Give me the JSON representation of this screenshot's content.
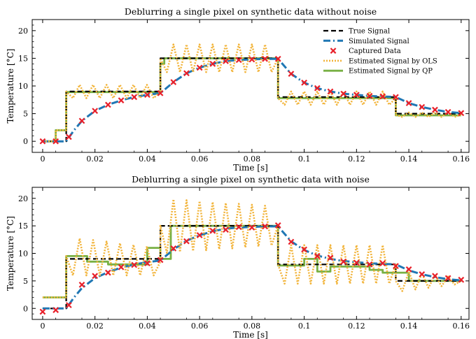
{
  "colors": {
    "true": "#000000",
    "sim": "#1f77b4",
    "cap": "#e8202a",
    "ols": "#f2b43a",
    "qp": "#78b043"
  },
  "chart_data": [
    {
      "type": "line",
      "title": "Deblurring a single pixel on synthetic data without noise",
      "xlabel": "Time [s]",
      "ylabel": "Temperature [°C]",
      "xlim": [
        -0.004,
        0.163
      ],
      "ylim": [
        -2,
        22
      ],
      "xticks": [
        0,
        0.02,
        0.04,
        0.06,
        0.08,
        0.1,
        0.12,
        0.14,
        0.16
      ],
      "xtick_labels": [
        "0",
        "0.02",
        "0.04",
        "0.06",
        "0.08",
        "0.1",
        "0.12",
        "0.14",
        "0.16"
      ],
      "yticks": [
        0,
        5,
        10,
        15,
        20
      ],
      "ytick_labels": [
        "0",
        "5",
        "10",
        "15",
        "20"
      ],
      "grid": false,
      "legend_position": "top-right",
      "legend": [
        {
          "key": "true",
          "label": "True Signal"
        },
        {
          "key": "sim",
          "label": "Simulated Signal"
        },
        {
          "key": "cap",
          "label": "Captured Data"
        },
        {
          "key": "ols",
          "label": "Estimated Signal by OLS"
        },
        {
          "key": "qp",
          "label": "Estimated Signal by QP"
        }
      ],
      "series": [
        {
          "key": "true",
          "name": "True Signal",
          "step": true,
          "x": [
            0,
            0.009,
            0.009,
            0.045,
            0.045,
            0.09,
            0.09,
            0.135,
            0.135,
            0.16
          ],
          "y": [
            0,
            0,
            9,
            9,
            15,
            15,
            8,
            8,
            5,
            5
          ]
        },
        {
          "key": "sim",
          "name": "Simulated Signal",
          "x": [
            0,
            0.009,
            0.012,
            0.015,
            0.02,
            0.025,
            0.03,
            0.035,
            0.04,
            0.045,
            0.05,
            0.055,
            0.06,
            0.065,
            0.07,
            0.075,
            0.08,
            0.085,
            0.09,
            0.095,
            0.1,
            0.105,
            0.11,
            0.115,
            0.12,
            0.125,
            0.13,
            0.135,
            0.14,
            0.145,
            0.15,
            0.155,
            0.16
          ],
          "y": [
            0,
            0,
            2.0,
            3.7,
            5.5,
            6.6,
            7.4,
            8.0,
            8.4,
            8.7,
            10.7,
            12.3,
            13.3,
            14.0,
            14.5,
            14.7,
            14.8,
            14.9,
            14.9,
            12.2,
            10.6,
            9.6,
            9.0,
            8.6,
            8.4,
            8.2,
            8.1,
            8.0,
            6.9,
            6.2,
            5.7,
            5.3,
            5.1
          ]
        },
        {
          "key": "cap",
          "name": "Captured Data",
          "x": [
            0,
            0.005,
            0.01,
            0.015,
            0.02,
            0.025,
            0.03,
            0.035,
            0.04,
            0.045,
            0.05,
            0.055,
            0.06,
            0.065,
            0.07,
            0.075,
            0.08,
            0.085,
            0.09,
            0.095,
            0.1,
            0.105,
            0.11,
            0.115,
            0.12,
            0.125,
            0.13,
            0.135,
            0.14,
            0.145,
            0.15,
            0.155,
            0.16
          ],
          "y": [
            0,
            0,
            0.8,
            3.7,
            5.5,
            6.6,
            7.4,
            8.0,
            8.4,
            8.7,
            10.7,
            12.3,
            13.3,
            14.0,
            14.5,
            14.7,
            14.8,
            14.9,
            14.9,
            12.2,
            10.6,
            9.6,
            9.0,
            8.6,
            8.4,
            8.2,
            8.1,
            8.0,
            6.9,
            6.2,
            5.7,
            5.3,
            5.1
          ]
        },
        {
          "key": "ols",
          "name": "Estimated Signal by OLS",
          "oscillating": true,
          "x": [
            0,
            0.005,
            0.005,
            0.009,
            0.009,
            0.045,
            0.045,
            0.09,
            0.09,
            0.135,
            0.135,
            0.16
          ],
          "y": [
            0,
            0,
            2,
            2,
            9,
            9,
            15,
            15,
            7.8,
            7.8,
            4.8,
            4.8
          ],
          "amp": [
            0,
            0,
            0,
            0,
            1.2,
            1.2,
            2.5,
            2.5,
            1.2,
            1.2,
            0.4,
            0.4
          ]
        },
        {
          "key": "qp",
          "name": "Estimated Signal by QP",
          "step": true,
          "x": [
            0,
            0.005,
            0.005,
            0.009,
            0.009,
            0.045,
            0.045,
            0.0465,
            0.0465,
            0.09,
            0.09,
            0.135,
            0.135,
            0.16
          ],
          "y": [
            0,
            0,
            2,
            2,
            8.9,
            8.9,
            14,
            14,
            15,
            15,
            7.8,
            7.8,
            4.7,
            4.7
          ]
        }
      ]
    },
    {
      "type": "line",
      "title": "Deblurring a single pixel on synthetic data with noise",
      "xlabel": "Time [s]",
      "ylabel": "Temperature [°C]",
      "xlim": [
        -0.004,
        0.163
      ],
      "ylim": [
        -2,
        22
      ],
      "xticks": [
        0,
        0.02,
        0.04,
        0.06,
        0.08,
        0.1,
        0.12,
        0.14,
        0.16
      ],
      "xtick_labels": [
        "0",
        "0.02",
        "0.04",
        "0.06",
        "0.08",
        "0.1",
        "0.12",
        "0.14",
        "0.16"
      ],
      "yticks": [
        0,
        5,
        10,
        15,
        20
      ],
      "ytick_labels": [
        "0",
        "5",
        "10",
        "15",
        "20"
      ],
      "grid": false,
      "legend": [],
      "series": [
        {
          "key": "true",
          "name": "True Signal",
          "step": true,
          "x": [
            0,
            0.009,
            0.009,
            0.045,
            0.045,
            0.09,
            0.09,
            0.135,
            0.135,
            0.16
          ],
          "y": [
            0,
            0,
            9,
            9,
            15,
            15,
            8,
            8,
            5,
            5
          ]
        },
        {
          "key": "sim",
          "name": "Simulated Signal",
          "x": [
            0,
            0.009,
            0.012,
            0.015,
            0.02,
            0.025,
            0.03,
            0.035,
            0.04,
            0.045,
            0.05,
            0.055,
            0.06,
            0.065,
            0.07,
            0.075,
            0.08,
            0.085,
            0.09,
            0.095,
            0.1,
            0.105,
            0.11,
            0.115,
            0.12,
            0.125,
            0.13,
            0.135,
            0.14,
            0.145,
            0.15,
            0.155,
            0.16
          ],
          "y": [
            0,
            0,
            2.0,
            3.7,
            5.5,
            6.6,
            7.4,
            8.0,
            8.4,
            8.7,
            10.7,
            12.3,
            13.3,
            14.0,
            14.5,
            14.7,
            14.8,
            14.9,
            14.9,
            12.2,
            10.6,
            9.6,
            9.0,
            8.6,
            8.4,
            8.2,
            8.1,
            8.0,
            6.9,
            6.2,
            5.7,
            5.3,
            5.1
          ]
        },
        {
          "key": "cap",
          "name": "Captured Data",
          "x": [
            0,
            0.005,
            0.01,
            0.015,
            0.02,
            0.025,
            0.03,
            0.035,
            0.04,
            0.045,
            0.05,
            0.055,
            0.06,
            0.065,
            0.07,
            0.075,
            0.08,
            0.085,
            0.09,
            0.095,
            0.1,
            0.105,
            0.11,
            0.115,
            0.12,
            0.125,
            0.13,
            0.135,
            0.14,
            0.145,
            0.15,
            0.155,
            0.16
          ],
          "y": [
            -0.6,
            -0.3,
            0.6,
            4.3,
            5.9,
            6.5,
            7.5,
            7.9,
            8.2,
            8.8,
            10.9,
            12.2,
            13.3,
            14.1,
            14.3,
            14.8,
            14.7,
            14.9,
            15.1,
            12.1,
            10.7,
            9.5,
            9.2,
            8.5,
            8.3,
            8.0,
            8.2,
            7.7,
            7.1,
            6.2,
            5.9,
            5.5,
            5.2
          ]
        },
        {
          "key": "ols",
          "name": "Estimated Signal by OLS",
          "oscillating": true,
          "x": [
            0,
            0.009,
            0.009,
            0.045,
            0.045,
            0.09,
            0.09,
            0.135,
            0.135,
            0.16
          ],
          "y": [
            2,
            2,
            9.5,
            8.5,
            15,
            15,
            8,
            8,
            5,
            5
          ],
          "amp": [
            0,
            0,
            3.5,
            2.5,
            5,
            3.5,
            3.5,
            3.5,
            2,
            0.5
          ]
        },
        {
          "key": "qp",
          "name": "Estimated Signal by QP",
          "step": true,
          "x": [
            0,
            0.009,
            0.009,
            0.017,
            0.017,
            0.025,
            0.025,
            0.04,
            0.04,
            0.045,
            0.045,
            0.049,
            0.049,
            0.09,
            0.09,
            0.1,
            0.1,
            0.105,
            0.105,
            0.11,
            0.11,
            0.125,
            0.125,
            0.13,
            0.13,
            0.14,
            0.14,
            0.16
          ],
          "y": [
            2,
            2,
            9.5,
            9.5,
            8.5,
            8.5,
            8,
            8,
            11,
            11,
            9,
            9,
            15,
            15,
            7.8,
            7.8,
            9,
            9,
            6.7,
            6.7,
            7.6,
            7.6,
            7,
            7,
            6.5,
            6.5,
            5,
            5
          ]
        }
      ]
    }
  ]
}
